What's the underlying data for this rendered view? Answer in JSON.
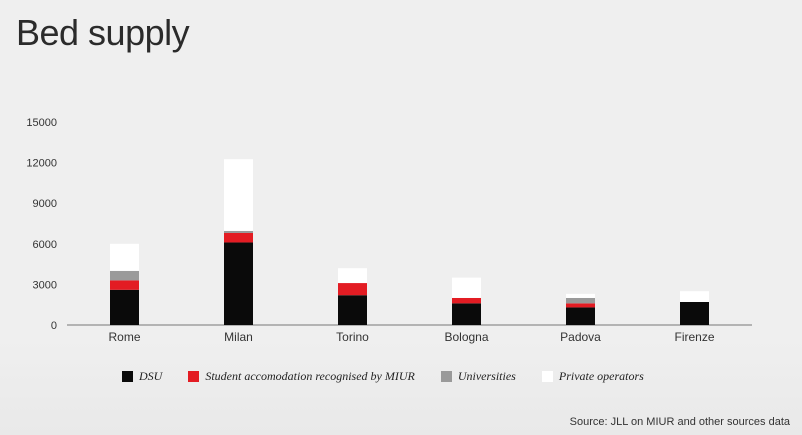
{
  "title": "Bed supply",
  "source": "Source: JLL on MIUR and other sources data",
  "colors": {
    "dsu": "#0a0a0a",
    "student": "#e31c23",
    "universities": "#9a9a9a",
    "private": "#ffffff"
  },
  "chart_data": {
    "type": "bar",
    "stacked": true,
    "categories": [
      "Rome",
      "Milan",
      "Torino",
      "Bologna",
      "Padova",
      "Firenze"
    ],
    "y_ticks": [
      "0",
      "3000",
      "6000",
      "9000",
      "12000",
      "15000"
    ],
    "ylim": [
      0,
      15000
    ],
    "series": [
      {
        "name": "DSU",
        "key": "dsu",
        "values": [
          2600,
          6100,
          2200,
          1600,
          1300,
          1700
        ]
      },
      {
        "name": "Student accomodation recognised by MIUR",
        "key": "student",
        "values": [
          700,
          700,
          900,
          400,
          300,
          0
        ]
      },
      {
        "name": "Universities",
        "key": "universities",
        "values": [
          700,
          150,
          0,
          0,
          400,
          0
        ]
      },
      {
        "name": "Private operators",
        "key": "private",
        "values": [
          2000,
          5300,
          1100,
          1500,
          300,
          800
        ]
      }
    ],
    "legend": "bottom"
  }
}
